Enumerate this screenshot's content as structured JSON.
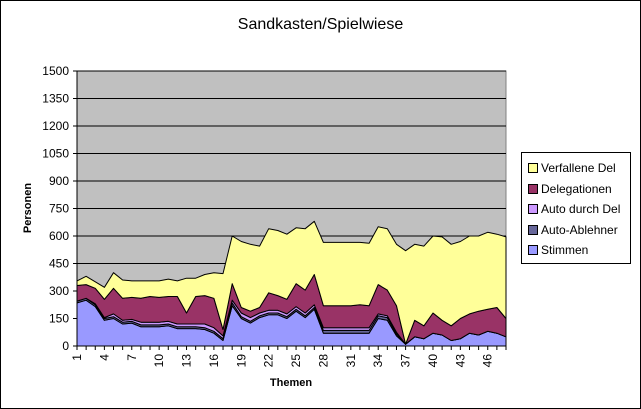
{
  "chart_data": {
    "type": "area",
    "stacked": true,
    "title": "Sandkasten/Spielwiese",
    "xlabel": "Themen",
    "ylabel": "Personen",
    "ylim": [
      0,
      1500
    ],
    "yticks": [
      0,
      150,
      300,
      450,
      600,
      750,
      900,
      1050,
      1200,
      1350,
      1500
    ],
    "xtick_labels": [
      "1",
      "4",
      "7",
      "10",
      "13",
      "16",
      "19",
      "22",
      "25",
      "28",
      "31",
      "34",
      "37",
      "40",
      "43",
      "46"
    ],
    "x": [
      1,
      2,
      3,
      4,
      5,
      6,
      7,
      8,
      9,
      10,
      11,
      12,
      13,
      14,
      15,
      16,
      17,
      18,
      19,
      20,
      21,
      22,
      23,
      24,
      25,
      26,
      27,
      28,
      29,
      30,
      31,
      32,
      33,
      34,
      35,
      36,
      37,
      38,
      39,
      40,
      41,
      42,
      43,
      44,
      45,
      46,
      47,
      48
    ],
    "grid": true,
    "plot_background": "#c0c0c0",
    "legend_position": "right",
    "series": [
      {
        "name": "Stimmen",
        "color": "#9999ff",
        "values": [
          235,
          250,
          215,
          140,
          150,
          120,
          125,
          105,
          105,
          105,
          110,
          95,
          95,
          95,
          90,
          70,
          30,
          220,
          150,
          125,
          155,
          170,
          170,
          150,
          190,
          155,
          200,
          70,
          70,
          70,
          70,
          70,
          70,
          150,
          140,
          55,
          10,
          50,
          40,
          70,
          60,
          30,
          40,
          70,
          60,
          80,
          70,
          50
        ]
      },
      {
        "name": "Auto-Ablehner",
        "color": "#666699",
        "values": [
          10,
          10,
          10,
          10,
          10,
          10,
          10,
          10,
          10,
          10,
          10,
          10,
          10,
          10,
          10,
          10,
          10,
          15,
          10,
          10,
          10,
          10,
          10,
          10,
          10,
          10,
          10,
          15,
          15,
          15,
          15,
          15,
          15,
          15,
          15,
          10,
          0,
          0,
          0,
          0,
          0,
          0,
          0,
          0,
          0,
          0,
          0,
          0
        ]
      },
      {
        "name": "Auto durch Del",
        "color": "#cc99ff",
        "values": [
          0,
          0,
          5,
          5,
          15,
          10,
          10,
          15,
          15,
          15,
          15,
          15,
          15,
          15,
          20,
          20,
          15,
          15,
          20,
          20,
          15,
          15,
          15,
          15,
          15,
          15,
          15,
          15,
          15,
          15,
          15,
          15,
          15,
          10,
          10,
          10,
          0,
          0,
          0,
          0,
          0,
          0,
          0,
          0,
          0,
          0,
          0,
          0
        ]
      },
      {
        "name": "Delegationen",
        "color": "#993366",
        "values": [
          85,
          75,
          85,
          100,
          140,
          120,
          120,
          130,
          140,
          135,
          135,
          150,
          60,
          150,
          155,
          160,
          35,
          90,
          30,
          35,
          30,
          95,
          80,
          80,
          125,
          125,
          165,
          120,
          120,
          120,
          120,
          125,
          120,
          160,
          140,
          145,
          0,
          90,
          70,
          110,
          80,
          80,
          110,
          105,
          130,
          120,
          140,
          100
        ]
      },
      {
        "name": "Verfallene Del",
        "color": "#ffff99",
        "values": [
          25,
          45,
          35,
          65,
          85,
          100,
          90,
          95,
          85,
          90,
          95,
          85,
          190,
          100,
          115,
          140,
          305,
          260,
          360,
          365,
          335,
          350,
          355,
          355,
          305,
          335,
          290,
          345,
          345,
          345,
          345,
          340,
          340,
          315,
          335,
          335,
          510,
          415,
          435,
          420,
          455,
          445,
          420,
          425,
          410,
          420,
          400,
          445
        ]
      }
    ]
  },
  "legend": {
    "items": [
      {
        "label": "Verfallene Del",
        "color": "#ffff99"
      },
      {
        "label": "Delegationen",
        "color": "#993366"
      },
      {
        "label": "Auto durch Del",
        "color": "#cc99ff"
      },
      {
        "label": "Auto-Ablehner",
        "color": "#666699"
      },
      {
        "label": "Stimmen",
        "color": "#9999ff"
      }
    ]
  }
}
